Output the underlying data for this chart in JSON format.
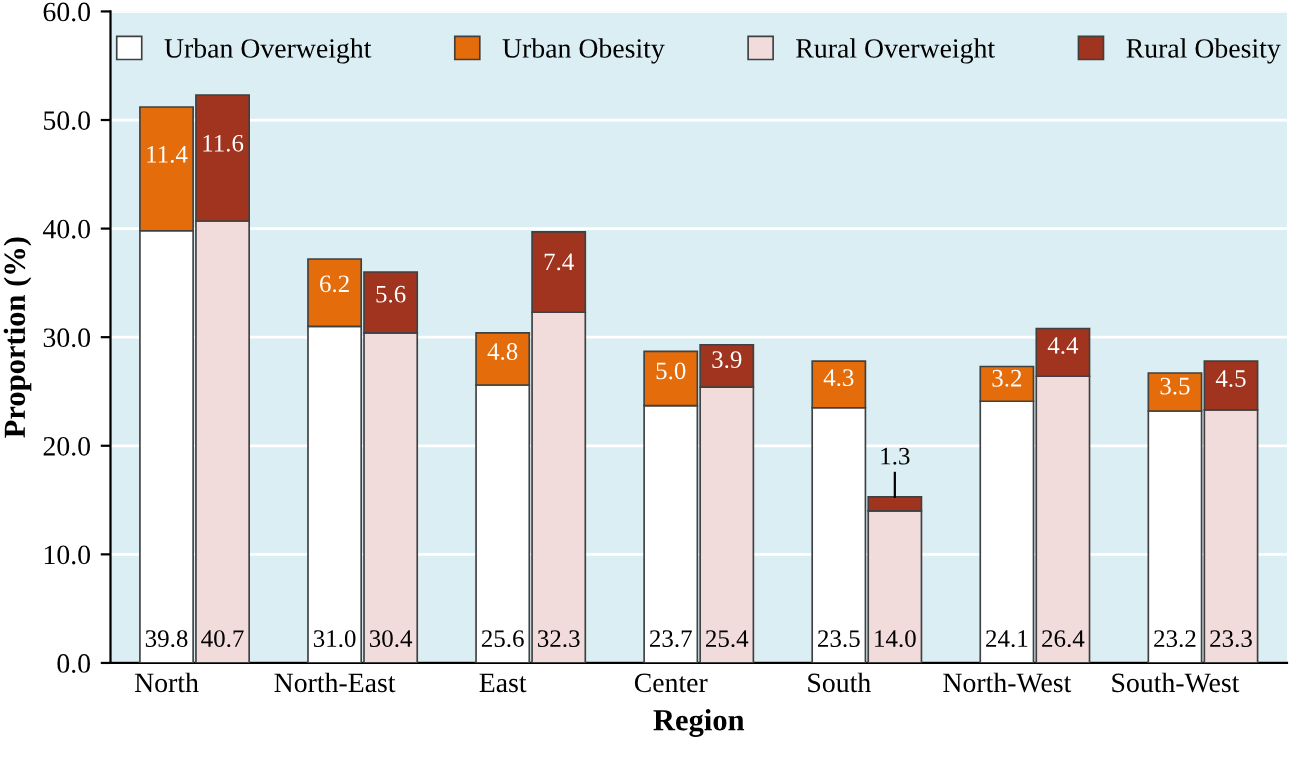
{
  "chart_data": {
    "type": "bar",
    "stacked": true,
    "xlabel": "Region",
    "ylabel": "Proportion (%)",
    "categories": [
      "North",
      null,
      null,
      "North-East",
      null,
      null,
      "East",
      null,
      null,
      "Center",
      null,
      null,
      "South",
      null,
      null,
      "North-West",
      null,
      null,
      "South-West",
      null
    ],
    "series": [
      {
        "name": "Urban Overweight",
        "color": "#ffffff",
        "values": [
          39.8,
          null,
          null,
          31.0,
          null,
          null,
          25.6,
          null,
          null,
          23.7,
          null,
          null,
          23.5,
          null,
          null,
          24.1,
          null,
          null,
          23.2,
          null
        ],
        "value_labels": [
          "39.8",
          null,
          null,
          "31.0",
          null,
          null,
          "25.6",
          null,
          null,
          "23.7",
          null,
          null,
          "23.5",
          null,
          null,
          "24.1",
          null,
          null,
          "23.2",
          null
        ]
      },
      {
        "name": "Urban Obesity",
        "color": "#e46c0a",
        "values": [
          11.4,
          null,
          null,
          6.2,
          null,
          null,
          4.8,
          null,
          null,
          5.0,
          null,
          null,
          4.3,
          null,
          null,
          3.2,
          null,
          null,
          3.5,
          null
        ],
        "value_labels": [
          "11.4",
          null,
          null,
          "6.2",
          null,
          null,
          "4.8",
          null,
          null,
          "5.0",
          null,
          null,
          "4.3",
          null,
          null,
          "3.2",
          null,
          null,
          "3.5",
          null
        ]
      },
      {
        "name": "Rural Overweight",
        "color": "#f2dcdb",
        "values": [
          null,
          40.7,
          null,
          null,
          30.4,
          null,
          null,
          32.3,
          null,
          null,
          25.4,
          null,
          null,
          14.0,
          null,
          null,
          26.4,
          null,
          null,
          23.3
        ],
        "value_labels": [
          null,
          "40.7",
          null,
          null,
          "30.4",
          null,
          null,
          "32.3",
          null,
          null,
          "25.4",
          null,
          null,
          "14.0",
          null,
          null,
          "26.4",
          null,
          null,
          "23.3"
        ]
      },
      {
        "name": "Rural Obesity",
        "color": "#a0341e",
        "values": [
          null,
          11.6,
          null,
          null,
          5.6,
          null,
          null,
          7.4,
          null,
          null,
          3.9,
          null,
          null,
          1.3,
          null,
          null,
          4.4,
          null,
          null,
          4.5
        ],
        "value_labels": [
          null,
          "11.6",
          null,
          null,
          "5.6",
          null,
          null,
          "7.4",
          null,
          null,
          "3.9",
          null,
          null,
          "1.3",
          null,
          null,
          "4.4",
          null,
          null,
          "4.5"
        ]
      }
    ],
    "ylim": [
      0,
      60
    ],
    "yticks": [
      {
        "value": 0,
        "label": "0.0"
      },
      {
        "value": 10,
        "label": "10.0"
      },
      {
        "value": 20,
        "label": "20.0"
      },
      {
        "value": 30,
        "label": "30.0"
      },
      {
        "value": 40,
        "label": "40.0"
      },
      {
        "value": 50,
        "label": "50.0"
      },
      {
        "value": 60,
        "label": "60.0"
      }
    ],
    "grid": "y",
    "legend": "top"
  }
}
